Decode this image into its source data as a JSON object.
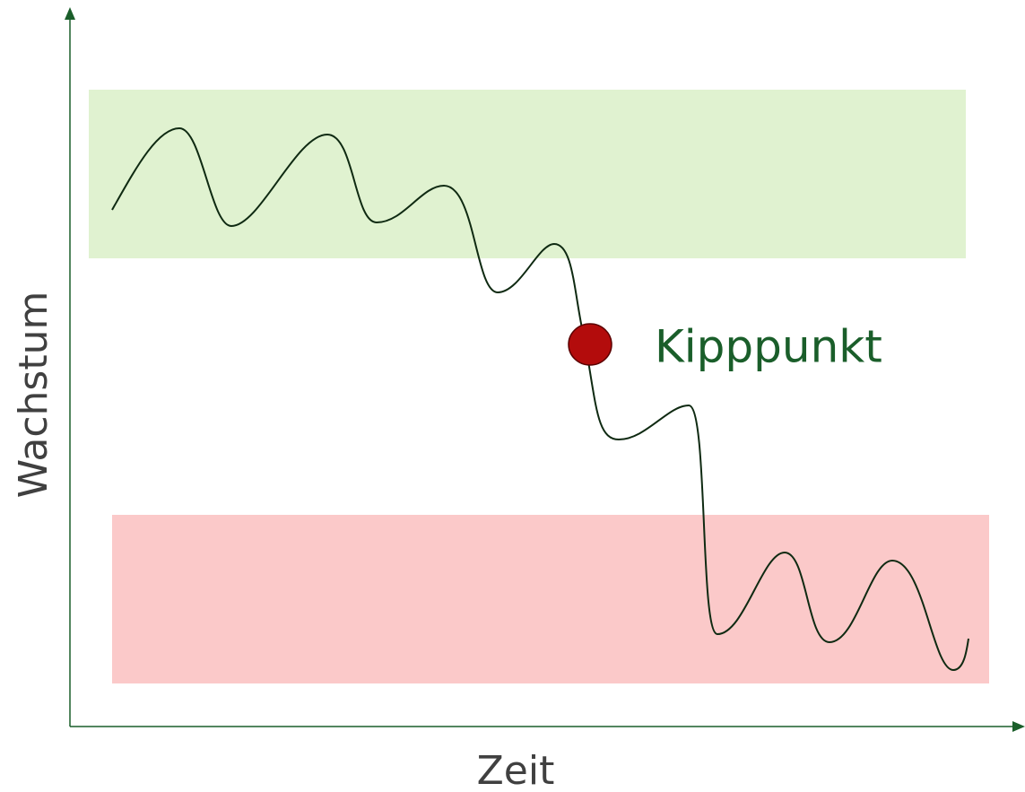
{
  "axes": {
    "y_label": "Wachstum",
    "x_label": "Zeit"
  },
  "annotation": "Kipppunkt"
}
